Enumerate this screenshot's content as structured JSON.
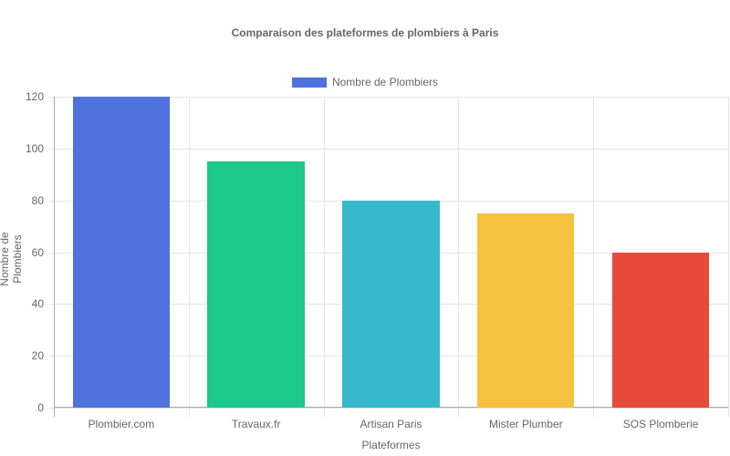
{
  "chart_data": {
    "type": "bar",
    "title": "Comparaison des plateformes de plombiers à Paris",
    "categories": [
      "Plombier.com",
      "Travaux.fr",
      "Artisan Paris",
      "Mister Plumber",
      "SOS Plomberie"
    ],
    "series": [
      {
        "name": "Nombre de Plombiers",
        "values": [
          120,
          95,
          80,
          75,
          60
        ]
      }
    ],
    "colors": [
      "#4e73df",
      "#1cc88a",
      "#36b9cc",
      "#f6c23e",
      "#e74a3b"
    ],
    "xlabel": "Plateformes",
    "ylabel": "Nombre de Plombiers",
    "ylim": [
      0,
      120
    ],
    "yticks": [
      0,
      20,
      40,
      60,
      80,
      100,
      120
    ],
    "grid": true,
    "legend_position": "top"
  },
  "legend": {
    "label": "Nombre de Plombiers",
    "color": "#4e73df"
  }
}
